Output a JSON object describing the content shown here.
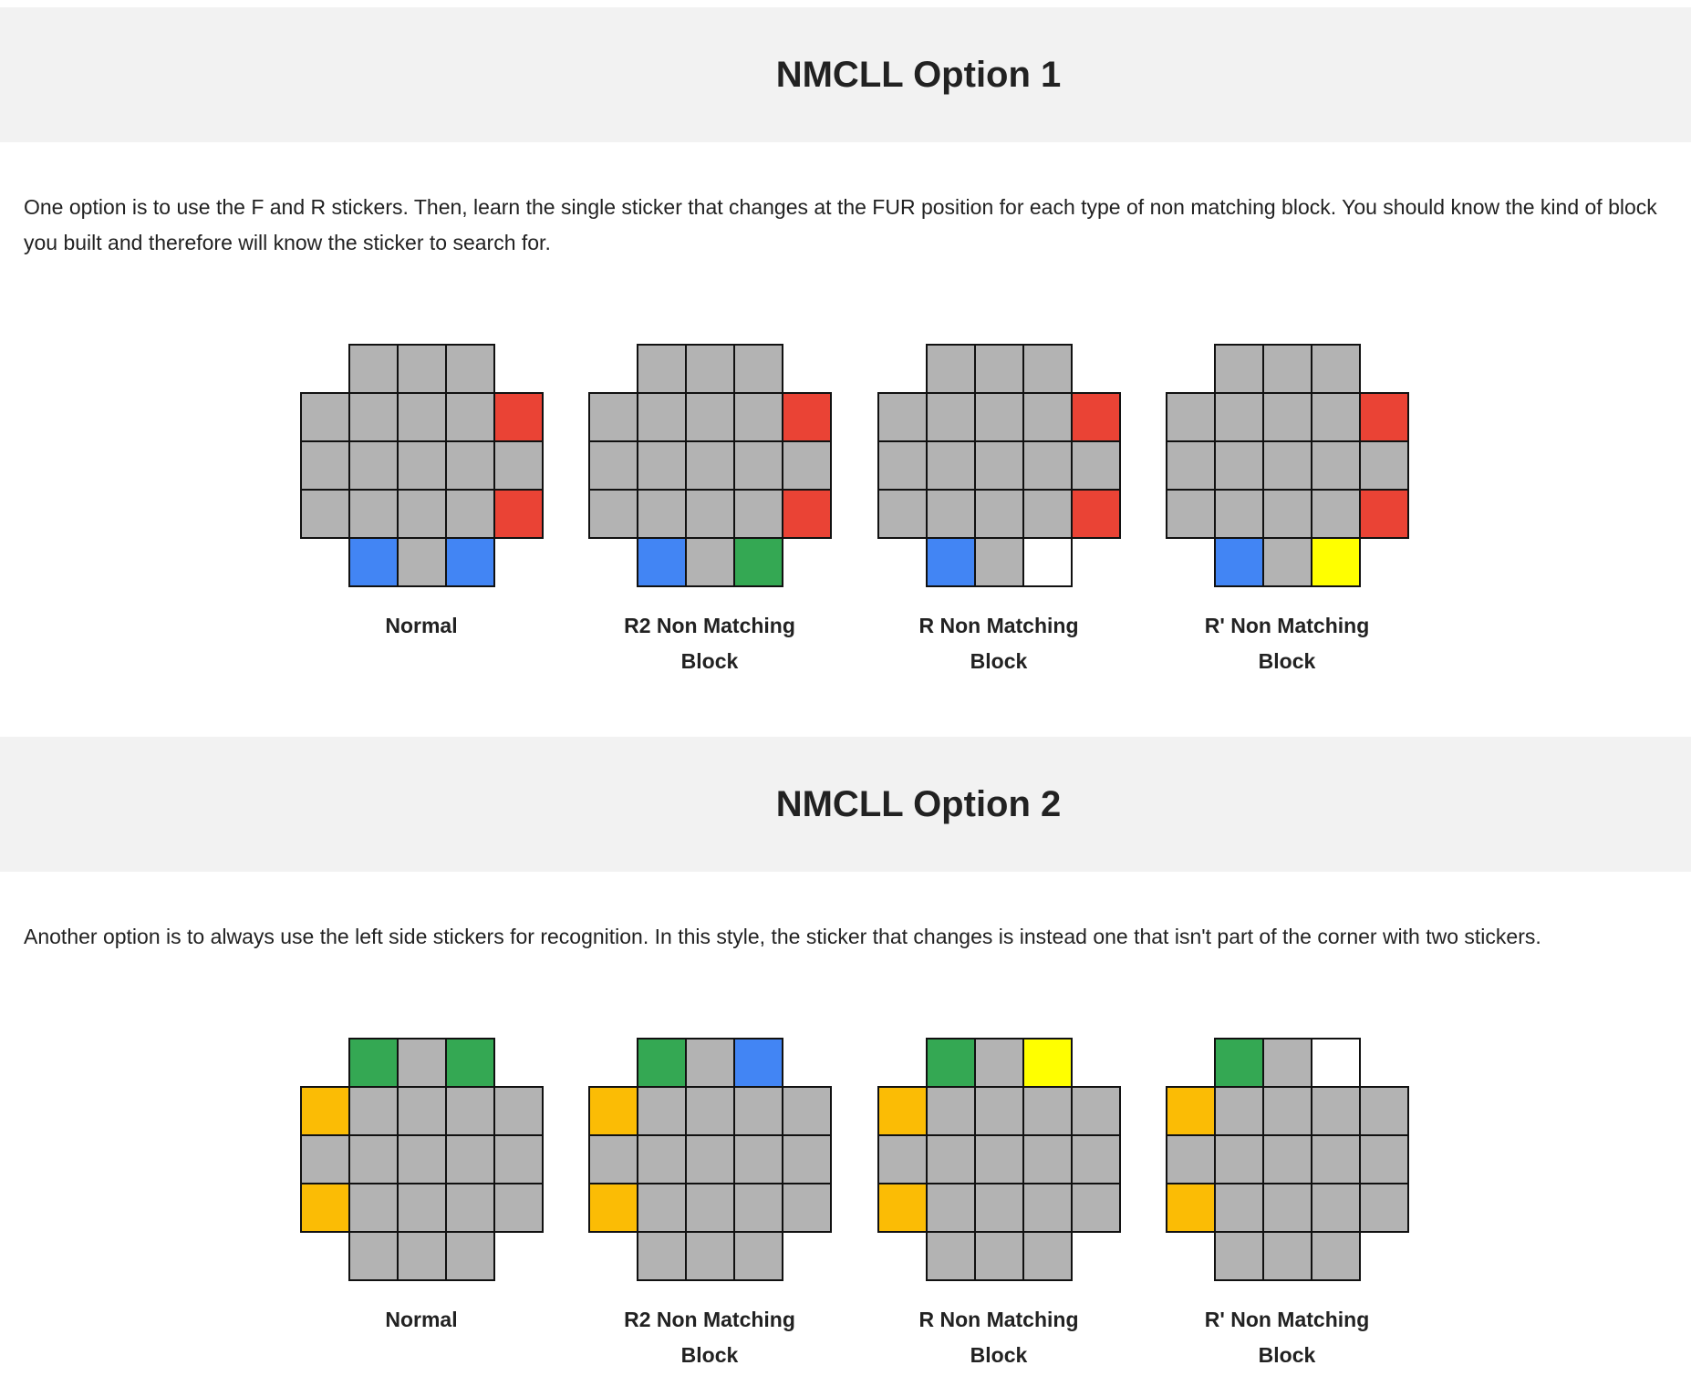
{
  "colors": {
    "gray": "#b3b3b3",
    "red": "#ea4335",
    "blue": "#4285f4",
    "green": "#34a853",
    "yellow": "#ffff00",
    "white": "#ffffff",
    "orange": "#fbbc05"
  },
  "section1": {
    "title": "NMCLL Option 1",
    "text": "One option is to use the F and R stickers. Then, learn the single sticker that changes at the FUR position for each type of non matching block. You should know the kind of block you built and therefore will know the sticker to search for.",
    "diagrams": [
      {
        "caption": "Normal",
        "top": [
          "gray",
          "gray",
          "gray"
        ],
        "grid": [
          [
            "gray",
            "gray",
            "gray",
            "gray",
            "red"
          ],
          [
            "gray",
            "gray",
            "gray",
            "gray",
            "gray"
          ],
          [
            "gray",
            "gray",
            "gray",
            "gray",
            "red"
          ]
        ],
        "bottom": [
          "blue",
          "gray",
          "blue"
        ]
      },
      {
        "caption": "R2 Non Matching Block",
        "top": [
          "gray",
          "gray",
          "gray"
        ],
        "grid": [
          [
            "gray",
            "gray",
            "gray",
            "gray",
            "red"
          ],
          [
            "gray",
            "gray",
            "gray",
            "gray",
            "gray"
          ],
          [
            "gray",
            "gray",
            "gray",
            "gray",
            "red"
          ]
        ],
        "bottom": [
          "blue",
          "gray",
          "green"
        ]
      },
      {
        "caption": "R Non Matching Block",
        "top": [
          "gray",
          "gray",
          "gray"
        ],
        "grid": [
          [
            "gray",
            "gray",
            "gray",
            "gray",
            "red"
          ],
          [
            "gray",
            "gray",
            "gray",
            "gray",
            "gray"
          ],
          [
            "gray",
            "gray",
            "gray",
            "gray",
            "red"
          ]
        ],
        "bottom": [
          "blue",
          "gray",
          "white"
        ]
      },
      {
        "caption": "R' Non Matching Block",
        "top": [
          "gray",
          "gray",
          "gray"
        ],
        "grid": [
          [
            "gray",
            "gray",
            "gray",
            "gray",
            "red"
          ],
          [
            "gray",
            "gray",
            "gray",
            "gray",
            "gray"
          ],
          [
            "gray",
            "gray",
            "gray",
            "gray",
            "red"
          ]
        ],
        "bottom": [
          "blue",
          "gray",
          "yellow"
        ]
      }
    ]
  },
  "section2": {
    "title": "NMCLL Option 2",
    "text": "Another option is to always use the left side stickers for recognition. In this style, the sticker that changes is instead one that isn't part of the corner with two stickers.",
    "diagrams": [
      {
        "caption": "Normal",
        "top": [
          "green",
          "gray",
          "green"
        ],
        "grid": [
          [
            "orange",
            "gray",
            "gray",
            "gray",
            "gray"
          ],
          [
            "gray",
            "gray",
            "gray",
            "gray",
            "gray"
          ],
          [
            "orange",
            "gray",
            "gray",
            "gray",
            "gray"
          ]
        ],
        "bottom": [
          "gray",
          "gray",
          "gray"
        ]
      },
      {
        "caption": "R2 Non Matching Block",
        "top": [
          "green",
          "gray",
          "blue"
        ],
        "grid": [
          [
            "orange",
            "gray",
            "gray",
            "gray",
            "gray"
          ],
          [
            "gray",
            "gray",
            "gray",
            "gray",
            "gray"
          ],
          [
            "orange",
            "gray",
            "gray",
            "gray",
            "gray"
          ]
        ],
        "bottom": [
          "gray",
          "gray",
          "gray"
        ]
      },
      {
        "caption": "R Non Matching Block",
        "top": [
          "green",
          "gray",
          "yellow"
        ],
        "grid": [
          [
            "orange",
            "gray",
            "gray",
            "gray",
            "gray"
          ],
          [
            "gray",
            "gray",
            "gray",
            "gray",
            "gray"
          ],
          [
            "orange",
            "gray",
            "gray",
            "gray",
            "gray"
          ]
        ],
        "bottom": [
          "gray",
          "gray",
          "gray"
        ]
      },
      {
        "caption": "R' Non Matching Block",
        "top": [
          "green",
          "gray",
          "white"
        ],
        "grid": [
          [
            "orange",
            "gray",
            "gray",
            "gray",
            "gray"
          ],
          [
            "gray",
            "gray",
            "gray",
            "gray",
            "gray"
          ],
          [
            "orange",
            "gray",
            "gray",
            "gray",
            "gray"
          ]
        ],
        "bottom": [
          "gray",
          "gray",
          "gray"
        ]
      }
    ]
  }
}
